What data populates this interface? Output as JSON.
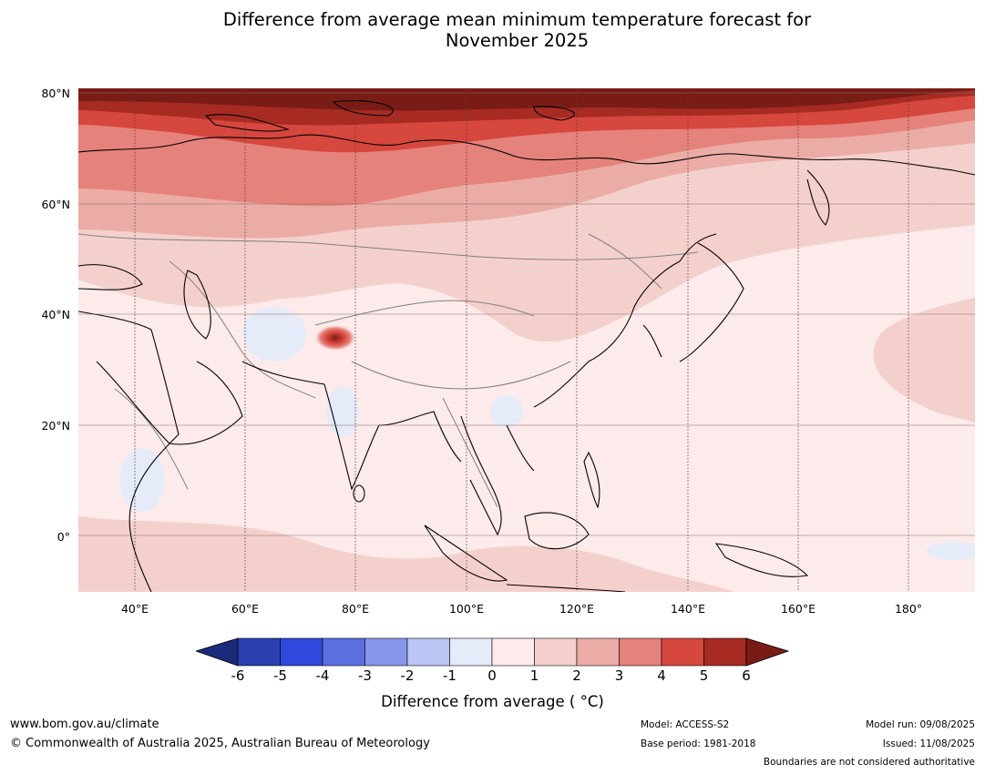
{
  "title_line1": "Difference from average mean minimum temperature forecast for",
  "title_line2": "November 2025",
  "lat_labels": [
    "80°N",
    "60°N",
    "40°N",
    "20°N",
    "0°"
  ],
  "lon_labels": [
    "40°E",
    "60°E",
    "80°E",
    "100°E",
    "120°E",
    "140°E",
    "160°E",
    "180°"
  ],
  "colorbar": {
    "ticks": [
      "-6",
      "-5",
      "-4",
      "-3",
      "-2",
      "-1",
      "0",
      "1",
      "2",
      "3",
      "4",
      "5",
      "6"
    ],
    "colors": [
      "#1b2b7a",
      "#2a3fb0",
      "#3048dd",
      "#5b6fe0",
      "#8796ea",
      "#bcc6f4",
      "#e6ebfa",
      "#fcebea",
      "#f4d0cc",
      "#ecaca6",
      "#e5827b",
      "#d6473d",
      "#a72b22",
      "#7a1c16"
    ],
    "label": "Difference from average ( °C)"
  },
  "map_colors": {
    "land_outline": "#000000",
    "border": "#808080",
    "grid": "#5a3a3a",
    "hotspot": "#b03a35"
  },
  "footer": {
    "url": "www.bom.gov.au/climate",
    "copyright": "© Commonwealth of Australia 2025, Australian Bureau of Meteorology",
    "model": "Model: ACCESS-S2",
    "base_period": "Base period: 1981-2018",
    "model_run": "Model run: 09/08/2025",
    "issued": "Issued: 11/08/2025",
    "boundaries": "Boundaries are not considered authoritative"
  }
}
